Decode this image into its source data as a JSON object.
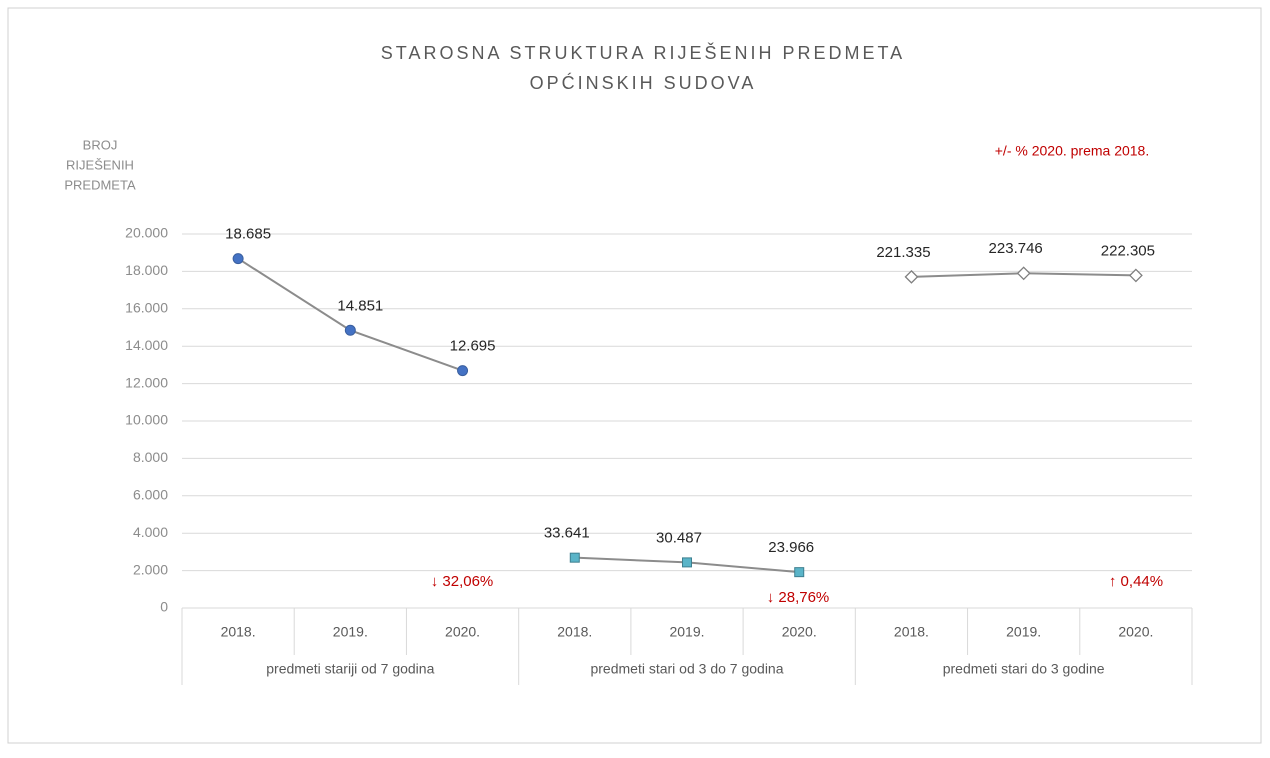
{
  "chart_data": {
    "type": "line",
    "title": [
      "STAROSNA STRUKTURA RIJEŠENIH PREDMETA",
      "OPĆINSKIH SUDOVA"
    ],
    "y_label": [
      "BROJ",
      "RIJEŠENIH",
      "PREDMETA"
    ],
    "legend_note": "+/- % 2020. prema 2018.",
    "categories": [
      "2018.",
      "2019.",
      "2020.",
      "2018.",
      "2019.",
      "2020.",
      "2018.",
      "2019.",
      "2020."
    ],
    "groups": [
      "predmeti stariji od 7 godina",
      "predmeti stari od 3 do 7 godina",
      "predmeti stari do 3 godine"
    ],
    "ylim": [
      0,
      20000
    ],
    "yticks": [
      0,
      {
        "value": 2000,
        "label": "2.000"
      },
      {
        "value": 4000,
        "label": "4.000"
      },
      {
        "value": 6000,
        "label": "6.000"
      },
      {
        "value": 8000,
        "label": "8.000"
      },
      {
        "value": 10000,
        "label": "10.000"
      },
      {
        "value": 12000,
        "label": "12.000"
      },
      {
        "value": 14000,
        "label": "14.000"
      },
      {
        "value": 16000,
        "label": "16.000"
      },
      {
        "value": 18000,
        "label": "18.000"
      },
      {
        "value": 20000,
        "label": "20.000"
      }
    ],
    "y2lim": [
      0,
      250000
    ],
    "grid": true,
    "series": [
      {
        "name": "predmeti stariji od 7 godina",
        "color": "#4472c4",
        "marker": "circle",
        "values": [
          18685,
          14851,
          12695,
          null,
          null,
          null,
          null,
          null,
          null
        ],
        "value_labels": [
          "18.685",
          "14.851",
          "12.695",
          null,
          null,
          null,
          null,
          null,
          null
        ]
      },
      {
        "name": "predmeti stari od 3 do 7 godina",
        "color": "#5ab4c8",
        "marker": "square",
        "axis": "y2",
        "values": [
          null,
          null,
          null,
          33641,
          30487,
          23966,
          null,
          null,
          null
        ],
        "value_labels": [
          null,
          null,
          null,
          "33.641",
          "30.487",
          "23.966",
          null,
          null,
          null
        ]
      },
      {
        "name": "predmeti stari do 3 godine",
        "color": "#ffffff",
        "marker": "diamond",
        "axis": "y2",
        "values": [
          null,
          null,
          null,
          null,
          null,
          null,
          221335,
          223746,
          222305
        ],
        "value_labels": [
          null,
          null,
          null,
          null,
          null,
          null,
          "221.335",
          "223.746",
          "222.305"
        ]
      }
    ],
    "annotations": [
      "↓ 32,06%",
      "↓ 28,76%",
      "↑ 0,44%"
    ]
  }
}
